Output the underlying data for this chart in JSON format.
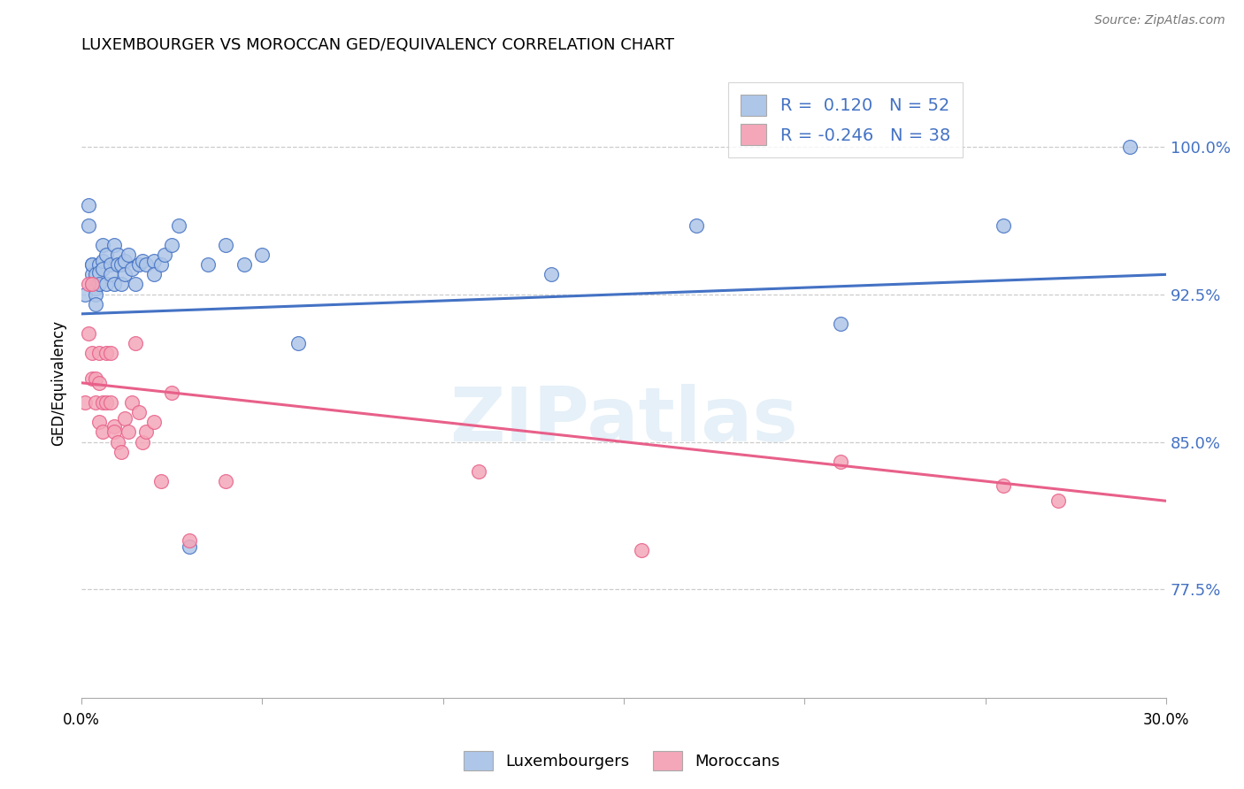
{
  "title": "LUXEMBOURGER VS MOROCCAN GED/EQUIVALENCY CORRELATION CHART",
  "source": "Source: ZipAtlas.com",
  "ylabel": "GED/Equivalency",
  "ytick_labels": [
    "77.5%",
    "85.0%",
    "92.5%",
    "100.0%"
  ],
  "ytick_values": [
    0.775,
    0.85,
    0.925,
    1.0
  ],
  "xlim": [
    0.0,
    0.3
  ],
  "ylim": [
    0.72,
    1.04
  ],
  "r_lux": 0.12,
  "n_lux": 52,
  "r_mor": -0.246,
  "n_mor": 38,
  "color_lux": "#aec6e8",
  "color_mor": "#f4a7b9",
  "line_color_lux": "#4472c4",
  "line_color_mor": "#e8608a",
  "watermark": "ZIPatlas",
  "lux_x": [
    0.001,
    0.002,
    0.002,
    0.003,
    0.003,
    0.003,
    0.003,
    0.004,
    0.004,
    0.004,
    0.004,
    0.005,
    0.005,
    0.005,
    0.006,
    0.006,
    0.006,
    0.007,
    0.007,
    0.008,
    0.008,
    0.009,
    0.009,
    0.01,
    0.01,
    0.011,
    0.011,
    0.012,
    0.012,
    0.013,
    0.014,
    0.015,
    0.016,
    0.017,
    0.018,
    0.02,
    0.02,
    0.022,
    0.023,
    0.025,
    0.027,
    0.03,
    0.035,
    0.04,
    0.045,
    0.05,
    0.06,
    0.13,
    0.17,
    0.21,
    0.255,
    0.29
  ],
  "lux_y": [
    0.925,
    0.96,
    0.97,
    0.93,
    0.94,
    0.935,
    0.94,
    0.935,
    0.928,
    0.925,
    0.92,
    0.94,
    0.936,
    0.93,
    0.95,
    0.942,
    0.938,
    0.945,
    0.93,
    0.94,
    0.935,
    0.95,
    0.93,
    0.945,
    0.94,
    0.94,
    0.93,
    0.942,
    0.935,
    0.945,
    0.938,
    0.93,
    0.94,
    0.942,
    0.94,
    0.942,
    0.935,
    0.94,
    0.945,
    0.95,
    0.96,
    0.797,
    0.94,
    0.95,
    0.94,
    0.945,
    0.9,
    0.935,
    0.96,
    0.91,
    0.96,
    1.0
  ],
  "mor_x": [
    0.001,
    0.002,
    0.002,
    0.003,
    0.003,
    0.003,
    0.004,
    0.004,
    0.005,
    0.005,
    0.005,
    0.006,
    0.006,
    0.007,
    0.007,
    0.008,
    0.008,
    0.009,
    0.009,
    0.01,
    0.011,
    0.012,
    0.013,
    0.014,
    0.015,
    0.016,
    0.017,
    0.018,
    0.02,
    0.022,
    0.025,
    0.03,
    0.04,
    0.11,
    0.155,
    0.21,
    0.255,
    0.27
  ],
  "mor_y": [
    0.87,
    0.93,
    0.905,
    0.882,
    0.93,
    0.895,
    0.882,
    0.87,
    0.895,
    0.88,
    0.86,
    0.87,
    0.855,
    0.895,
    0.87,
    0.895,
    0.87,
    0.858,
    0.855,
    0.85,
    0.845,
    0.862,
    0.855,
    0.87,
    0.9,
    0.865,
    0.85,
    0.855,
    0.86,
    0.83,
    0.875,
    0.8,
    0.83,
    0.835,
    0.795,
    0.84,
    0.828,
    0.82
  ],
  "lux_trend_x0": 0.0,
  "lux_trend_y0": 0.915,
  "lux_trend_x1": 0.3,
  "lux_trend_y1": 0.935,
  "mor_trend_x0": 0.0,
  "mor_trend_y0": 0.88,
  "mor_trend_x1": 0.3,
  "mor_trend_y1": 0.82
}
